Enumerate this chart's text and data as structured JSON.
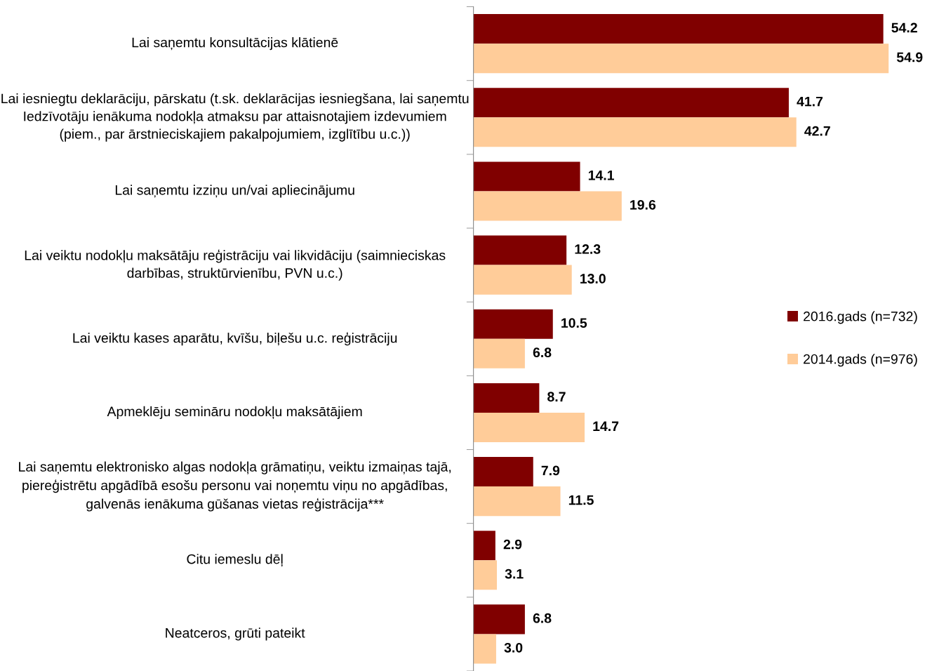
{
  "chart_data": {
    "type": "bar",
    "orientation": "horizontal",
    "legend": "right",
    "grid": false,
    "categories": [
      "Lai saņemtu konsultācijas klātienē",
      "Lai iesniegtu deklarāciju, pārskatu (t.sk. deklarācijas iesniegšana, lai saņemtu Iedzīvotāju ienākuma nodokļa atmaksu par attaisnotajiem izdevumiem (piem., par ārstnieciskajiem pakalpojumiem, izglītību u.c.))",
      "Lai saņemtu izziņu un/vai apliecinājumu",
      "Lai veiktu nodokļu maksātāju reģistrāciju vai likvidāciju (saimnieciskas darbības, struktūrvienību, PVN u.c.)",
      "Lai veiktu kases aparātu, kvīšu, biļešu u.c. reģistrāciju",
      "Apmeklēju semināru nodokļu maksātājiem",
      "Lai saņemtu elektronisko algas nodokļa grāmatiņu, veiktu izmaiņas tajā, piereģistrētu apgādībā esošu personu vai noņemtu viņu no apgādības, galvenās ienākuma gūšanas vietas reģistrācija***",
      "Citu iemeslu dēļ",
      "Neatceros, grūti pateikt"
    ],
    "series": [
      {
        "name": "2016.gads (n=732)",
        "color": "#800000",
        "values": [
          54.2,
          41.7,
          14.1,
          12.3,
          10.5,
          8.7,
          7.9,
          2.9,
          6.8
        ],
        "value_labels": [
          "54.2",
          "41.7",
          "14.1",
          "12.3",
          "10.5",
          "8.7",
          "7.9",
          "2.9",
          "6.8"
        ]
      },
      {
        "name": "2014.gads (n=976)",
        "color": "#ffcc99",
        "values": [
          54.9,
          42.7,
          19.6,
          13.0,
          6.8,
          14.7,
          11.5,
          3.1,
          3.0
        ],
        "value_labels": [
          "54.9",
          "42.7",
          "19.6",
          "13.0",
          "6.8",
          "14.7",
          "11.5",
          "3.1",
          "3.0"
        ]
      }
    ]
  }
}
